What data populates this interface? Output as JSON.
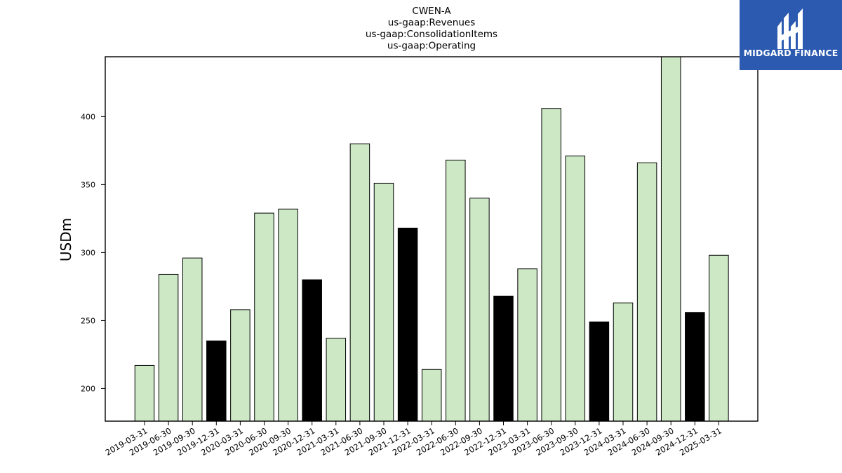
{
  "chart_data": {
    "type": "bar",
    "title_lines": [
      "CWEN-A",
      "us-gaap:Revenues",
      "us-gaap:ConsolidationItems",
      "us-gaap:Operating"
    ],
    "ylabel": "USDm",
    "xlabel": "",
    "ylim": [
      176,
      444
    ],
    "yticks": [
      200,
      250,
      300,
      350,
      400
    ],
    "categories": [
      "2019-03-31",
      "2019-06-30",
      "2019-09-30",
      "2019-12-31",
      "2020-03-31",
      "2020-06-30",
      "2020-09-30",
      "2020-12-31",
      "2021-03-31",
      "2021-06-30",
      "2021-09-30",
      "2021-12-31",
      "2022-03-31",
      "2022-06-30",
      "2022-09-30",
      "2022-12-31",
      "2023-03-31",
      "2023-06-30",
      "2023-09-30",
      "2023-12-31",
      "2024-03-31",
      "2024-06-30",
      "2024-09-30",
      "2024-12-31",
      "2025-03-31"
    ],
    "values": [
      217,
      284,
      296,
      235,
      258,
      329,
      332,
      280,
      237,
      380,
      351,
      318,
      214,
      368,
      340,
      268,
      288,
      406,
      371,
      249,
      263,
      366,
      444,
      256,
      298
    ],
    "highlight": [
      false,
      false,
      false,
      true,
      false,
      false,
      false,
      true,
      false,
      false,
      false,
      true,
      false,
      false,
      false,
      true,
      false,
      false,
      false,
      true,
      false,
      false,
      false,
      true,
      false
    ],
    "colors": {
      "bar": "#cde8c5",
      "highlight_bar": "#000000",
      "edge": "#000000"
    },
    "grid": false,
    "legend": "none"
  },
  "logo": {
    "text": "MIDGARD FINANCE",
    "background": "#2b5ab0"
  }
}
